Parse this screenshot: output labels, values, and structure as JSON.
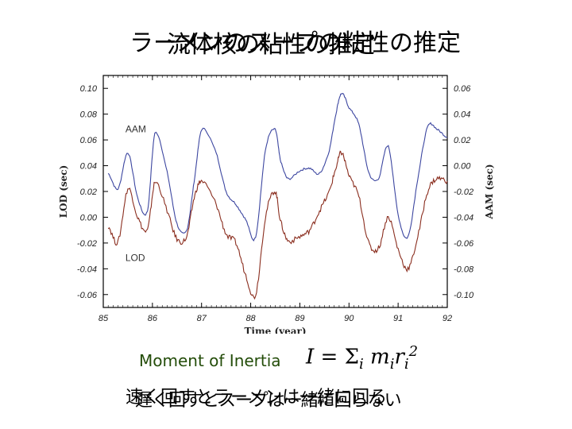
{
  "slide": {
    "title_a": "ラーメンのスープの粘性の推定",
    "title_b": "流体核の粘性の推定",
    "formula_label": "Moment of Inertia",
    "formula_lhs": "I",
    "formula_eq": "=",
    "formula_sum": "Σ",
    "formula_index": "i",
    "formula_m": "m",
    "formula_r": "r",
    "formula_exp": "2",
    "bottom_a": "速く回すとラーメンは一緒に回る",
    "bottom_b": "遅く回すとスープは一緒に回らない"
  },
  "chart_data": {
    "type": "line",
    "xlabel": "Time (year)",
    "ylabel_left": "LOD (sec)",
    "ylabel_right": "AAM (sec)",
    "xlim": [
      85,
      92
    ],
    "ylim_left": [
      -0.07,
      0.11
    ],
    "ylim_right": [
      -0.11,
      0.07
    ],
    "x_ticks": [
      "85",
      "86",
      "87",
      "88",
      "89",
      "90",
      "91",
      "92"
    ],
    "y_ticks_left": [
      "0.10",
      "0.08",
      "0.06",
      "0.04",
      "0.02",
      "0.00",
      "-0.02",
      "-0.04",
      "-0.06"
    ],
    "y_ticks_right": [
      "0.06",
      "0.04",
      "0.02",
      "0.00",
      "-0.02",
      "-0.04",
      "-0.06",
      "-0.08",
      "-0.10"
    ],
    "grid": false,
    "series": [
      {
        "name": "AAM",
        "axis": "right",
        "color": "#3c46a0",
        "label_at": [
          85.45,
          0.026
        ],
        "x": [
          85.1,
          85.3,
          85.5,
          85.7,
          85.9,
          86.05,
          86.3,
          86.5,
          86.7,
          86.85,
          87.0,
          87.3,
          87.5,
          87.7,
          87.9,
          88.1,
          88.3,
          88.5,
          88.6,
          88.75,
          89.0,
          89.2,
          89.4,
          89.6,
          89.75,
          89.85,
          90.0,
          90.2,
          90.4,
          90.6,
          90.8,
          91.0,
          91.2,
          91.4,
          91.6,
          91.8,
          92.0
        ],
        "y": [
          -0.006,
          -0.018,
          0.01,
          -0.025,
          -0.035,
          0.025,
          -0.005,
          -0.045,
          -0.05,
          -0.012,
          0.028,
          0.01,
          -0.02,
          -0.03,
          -0.042,
          -0.055,
          0.012,
          0.028,
          0.005,
          -0.01,
          -0.004,
          -0.002,
          -0.006,
          0.012,
          0.043,
          0.056,
          0.045,
          0.032,
          -0.005,
          -0.01,
          0.015,
          -0.038,
          -0.055,
          -0.01,
          0.03,
          0.028,
          0.022
        ]
      },
      {
        "name": "LOD",
        "axis": "left",
        "color": "#8a2d1e",
        "label_at": [
          85.45,
          -0.034
        ],
        "x": [
          85.1,
          85.3,
          85.5,
          85.7,
          85.9,
          86.05,
          86.3,
          86.5,
          86.7,
          86.85,
          87.0,
          87.3,
          87.5,
          87.7,
          87.9,
          88.1,
          88.3,
          88.5,
          88.6,
          88.75,
          89.0,
          89.2,
          89.4,
          89.6,
          89.75,
          89.85,
          90.0,
          90.2,
          90.4,
          90.6,
          90.8,
          91.0,
          91.2,
          91.4,
          91.6,
          91.8,
          92.0
        ],
        "y": [
          -0.007,
          -0.019,
          0.022,
          0.0,
          -0.01,
          0.027,
          0.005,
          -0.017,
          -0.015,
          0.015,
          0.028,
          0.01,
          -0.013,
          -0.02,
          -0.045,
          -0.06,
          0.0,
          0.02,
          -0.002,
          -0.018,
          -0.015,
          -0.01,
          0.005,
          0.02,
          0.04,
          0.05,
          0.032,
          0.016,
          -0.02,
          -0.024,
          0.0,
          -0.025,
          -0.04,
          -0.015,
          0.02,
          0.03,
          0.028
        ]
      }
    ]
  }
}
